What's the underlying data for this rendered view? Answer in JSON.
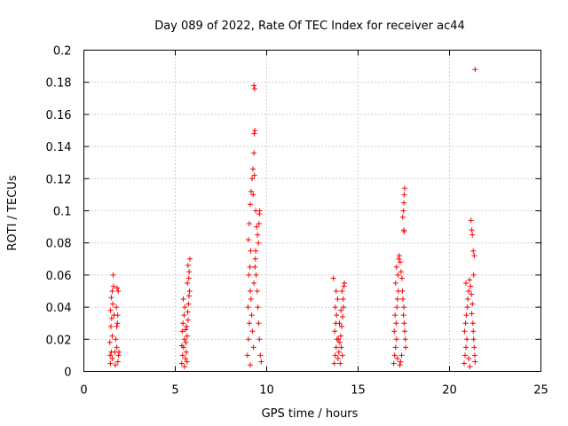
{
  "chart_data": {
    "type": "scatter",
    "title": "Day 089 of 2022, Rate Of TEC Index for receiver ac44",
    "xlabel": "GPS time / hours",
    "ylabel": "ROTI / TECUs",
    "xlim": [
      0,
      25
    ],
    "ylim": [
      0,
      0.2
    ],
    "grid": true,
    "marker": "+",
    "marker_color": "#ff0000",
    "x_ticks": [
      "0",
      "5",
      "10",
      "15",
      "20",
      "25"
    ],
    "y_ticks": [
      "0",
      "0.02",
      "0.04",
      "0.06",
      "0.08",
      "0.1",
      "0.12",
      "0.14",
      "0.16",
      "0.18",
      "0.2"
    ],
    "series": [
      {
        "values": [
          [
            1.45,
            0.005
          ],
          [
            1.5,
            0.012
          ],
          [
            1.42,
            0.018
          ],
          [
            1.55,
            0.022
          ],
          [
            1.48,
            0.028
          ],
          [
            1.52,
            0.033
          ],
          [
            1.46,
            0.038
          ],
          [
            1.58,
            0.042
          ],
          [
            1.5,
            0.046
          ],
          [
            1.55,
            0.05
          ],
          [
            1.6,
            0.06
          ],
          [
            1.62,
            0.053
          ],
          [
            1.65,
            0.035
          ],
          [
            1.44,
            0.01
          ],
          [
            1.56,
            0.008
          ],
          [
            1.7,
            0.012
          ],
          [
            1.75,
            0.02
          ],
          [
            1.8,
            0.028
          ],
          [
            1.85,
            0.035
          ],
          [
            1.78,
            0.04
          ],
          [
            1.82,
            0.052
          ],
          [
            1.88,
            0.05
          ],
          [
            1.9,
            0.01
          ],
          [
            1.86,
            0.006
          ],
          [
            1.72,
            0.004
          ],
          [
            1.8,
            0.015
          ],
          [
            1.92,
            0.012
          ],
          [
            1.84,
            0.03
          ],
          [
            5.35,
            0.005
          ],
          [
            5.4,
            0.01
          ],
          [
            5.45,
            0.015
          ],
          [
            5.5,
            0.02
          ],
          [
            5.38,
            0.025
          ],
          [
            5.42,
            0.03
          ],
          [
            5.48,
            0.035
          ],
          [
            5.52,
            0.04
          ],
          [
            5.55,
            0.008
          ],
          [
            5.6,
            0.012
          ],
          [
            5.58,
            0.018
          ],
          [
            5.65,
            0.022
          ],
          [
            5.62,
            0.028
          ],
          [
            5.7,
            0.032
          ],
          [
            5.68,
            0.037
          ],
          [
            5.72,
            0.042
          ],
          [
            5.75,
            0.047
          ],
          [
            5.78,
            0.05
          ],
          [
            5.66,
            0.055
          ],
          [
            5.74,
            0.058
          ],
          [
            5.76,
            0.062
          ],
          [
            5.7,
            0.066
          ],
          [
            5.8,
            0.07
          ],
          [
            5.44,
            0.045
          ],
          [
            5.36,
            0.016
          ],
          [
            5.56,
            0.026
          ],
          [
            5.64,
            0.006
          ],
          [
            5.5,
            0.003
          ],
          [
            8.95,
            0.01
          ],
          [
            9.0,
            0.02
          ],
          [
            9.05,
            0.03
          ],
          [
            8.98,
            0.04
          ],
          [
            9.1,
            0.05
          ],
          [
            9.02,
            0.06
          ],
          [
            9.08,
            0.065
          ],
          [
            9.12,
            0.075
          ],
          [
            9.0,
            0.082
          ],
          [
            9.05,
            0.092
          ],
          [
            9.1,
            0.104
          ],
          [
            9.15,
            0.112
          ],
          [
            9.2,
            0.12
          ],
          [
            9.25,
            0.126
          ],
          [
            9.3,
            0.136
          ],
          [
            9.32,
            0.148
          ],
          [
            9.35,
            0.15
          ],
          [
            9.3,
            0.178
          ],
          [
            9.34,
            0.176
          ],
          [
            9.4,
            0.1
          ],
          [
            9.45,
            0.09
          ],
          [
            9.5,
            0.085
          ],
          [
            9.55,
            0.08
          ],
          [
            9.6,
            0.098
          ],
          [
            9.62,
            0.1
          ],
          [
            9.58,
            0.092
          ],
          [
            9.38,
            0.07
          ],
          [
            9.42,
            0.06
          ],
          [
            9.48,
            0.05
          ],
          [
            9.52,
            0.04
          ],
          [
            9.56,
            0.03
          ],
          [
            9.6,
            0.02
          ],
          [
            9.65,
            0.01
          ],
          [
            9.7,
            0.006
          ],
          [
            9.28,
            0.015
          ],
          [
            9.22,
            0.025
          ],
          [
            9.18,
            0.035
          ],
          [
            9.14,
            0.045
          ],
          [
            9.3,
            0.055
          ],
          [
            9.36,
            0.065
          ],
          [
            9.4,
            0.075
          ],
          [
            9.26,
            0.11
          ],
          [
            9.33,
            0.122
          ],
          [
            9.1,
            0.004
          ],
          [
            13.7,
            0.005
          ],
          [
            13.75,
            0.01
          ],
          [
            13.8,
            0.015
          ],
          [
            13.85,
            0.02
          ],
          [
            13.72,
            0.025
          ],
          [
            13.78,
            0.03
          ],
          [
            13.82,
            0.035
          ],
          [
            13.75,
            0.04
          ],
          [
            13.88,
            0.045
          ],
          [
            13.8,
            0.05
          ],
          [
            13.65,
            0.058
          ],
          [
            13.9,
            0.008
          ],
          [
            13.95,
            0.012
          ],
          [
            14.0,
            0.018
          ],
          [
            14.05,
            0.022
          ],
          [
            14.1,
            0.028
          ],
          [
            14.15,
            0.034
          ],
          [
            14.2,
            0.04
          ],
          [
            14.18,
            0.045
          ],
          [
            14.12,
            0.05
          ],
          [
            14.22,
            0.053
          ],
          [
            14.25,
            0.055
          ],
          [
            14.08,
            0.015
          ],
          [
            14.02,
            0.005
          ],
          [
            14.14,
            0.01
          ],
          [
            13.98,
            0.03
          ],
          [
            14.06,
            0.038
          ],
          [
            13.92,
            0.02
          ],
          [
            16.95,
            0.005
          ],
          [
            17.0,
            0.01
          ],
          [
            17.05,
            0.015
          ],
          [
            17.1,
            0.02
          ],
          [
            16.98,
            0.025
          ],
          [
            17.08,
            0.03
          ],
          [
            17.02,
            0.035
          ],
          [
            17.12,
            0.04
          ],
          [
            17.15,
            0.045
          ],
          [
            17.2,
            0.05
          ],
          [
            17.05,
            0.055
          ],
          [
            17.18,
            0.06
          ],
          [
            17.1,
            0.065
          ],
          [
            17.22,
            0.07
          ],
          [
            17.25,
            0.072
          ],
          [
            17.3,
            0.068
          ],
          [
            17.35,
            0.062
          ],
          [
            17.4,
            0.058
          ],
          [
            17.42,
            0.05
          ],
          [
            17.45,
            0.045
          ],
          [
            17.5,
            0.04
          ],
          [
            17.48,
            0.035
          ],
          [
            17.52,
            0.03
          ],
          [
            17.55,
            0.025
          ],
          [
            17.58,
            0.02
          ],
          [
            17.6,
            0.015
          ],
          [
            17.5,
            0.088
          ],
          [
            17.52,
            0.087
          ],
          [
            17.48,
            0.1
          ],
          [
            17.5,
            0.105
          ],
          [
            17.52,
            0.11
          ],
          [
            17.55,
            0.114
          ],
          [
            17.44,
            0.096
          ],
          [
            17.38,
            0.01
          ],
          [
            17.32,
            0.006
          ],
          [
            17.28,
            0.004
          ],
          [
            17.15,
            0.008
          ],
          [
            20.8,
            0.005
          ],
          [
            20.85,
            0.01
          ],
          [
            20.9,
            0.015
          ],
          [
            20.95,
            0.02
          ],
          [
            20.82,
            0.025
          ],
          [
            20.88,
            0.03
          ],
          [
            20.92,
            0.035
          ],
          [
            20.98,
            0.04
          ],
          [
            21.0,
            0.045
          ],
          [
            21.05,
            0.05
          ],
          [
            20.9,
            0.055
          ],
          [
            21.1,
            0.057
          ],
          [
            21.15,
            0.053
          ],
          [
            21.2,
            0.048
          ],
          [
            21.25,
            0.042
          ],
          [
            21.22,
            0.036
          ],
          [
            21.28,
            0.03
          ],
          [
            21.3,
            0.025
          ],
          [
            21.32,
            0.02
          ],
          [
            21.35,
            0.015
          ],
          [
            21.38,
            0.01
          ],
          [
            21.4,
            0.006
          ],
          [
            21.18,
            0.094
          ],
          [
            21.22,
            0.088
          ],
          [
            21.25,
            0.085
          ],
          [
            21.3,
            0.075
          ],
          [
            21.35,
            0.072
          ],
          [
            21.32,
            0.06
          ],
          [
            21.4,
            0.188
          ],
          [
            21.12,
            0.003
          ],
          [
            21.05,
            0.008
          ]
        ]
      }
    ]
  }
}
